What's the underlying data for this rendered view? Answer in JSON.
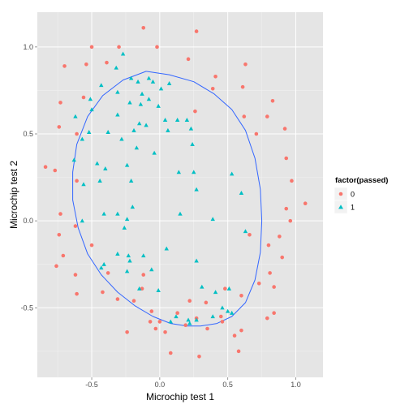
{
  "chart_data": {
    "type": "scatter",
    "xlabel": "Microchip test 1",
    "ylabel": "Microchip test 2",
    "xlim": [
      -0.9,
      1.2
    ],
    "ylim": [
      -0.9,
      1.2
    ],
    "x_ticks": [
      -0.5,
      0.0,
      0.5,
      1.0
    ],
    "x_tick_labels": [
      "-0.5",
      "0.0",
      "0.5",
      "1.0"
    ],
    "y_ticks": [
      -0.5,
      0.0,
      0.5,
      1.0
    ],
    "y_tick_labels": [
      "-0.5",
      "0.0",
      "0.5",
      "1.0"
    ],
    "grid": true,
    "legend": {
      "title": "factor(passed)",
      "placement": "right",
      "entries": [
        {
          "label": "0",
          "shape": "circle",
          "color": "#F8766D"
        },
        {
          "label": "1",
          "shape": "triangle",
          "color": "#00BFC4"
        }
      ]
    },
    "series": [
      {
        "name": "0",
        "shape": "circle",
        "color": "#F8766D",
        "points": [
          [
            -0.12,
            1.11
          ],
          [
            -0.5,
            1.0
          ],
          [
            -0.02,
            1.0
          ],
          [
            0.27,
            1.09
          ],
          [
            -0.3,
            1.0
          ],
          [
            -0.54,
            0.9
          ],
          [
            -0.39,
            0.91
          ],
          [
            -0.7,
            0.89
          ],
          [
            0.21,
            0.93
          ],
          [
            0.41,
            0.83
          ],
          [
            0.63,
            0.9
          ],
          [
            -0.56,
            0.71
          ],
          [
            0.39,
            0.76
          ],
          [
            -0.73,
            0.68
          ],
          [
            0.61,
            0.77
          ],
          [
            0.83,
            0.69
          ],
          [
            0.79,
            0.6
          ],
          [
            -0.74,
            0.54
          ],
          [
            0.62,
            0.6
          ],
          [
            0.71,
            0.5
          ],
          [
            0.92,
            0.53
          ],
          [
            -0.61,
            0.5
          ],
          [
            0.26,
            0.63
          ],
          [
            -0.84,
            0.31
          ],
          [
            -0.77,
            0.29
          ],
          [
            0.93,
            0.36
          ],
          [
            -0.61,
            0.23
          ],
          [
            0.97,
            0.23
          ],
          [
            1.07,
            0.1
          ],
          [
            -0.73,
            0.04
          ],
          [
            0.93,
            0.07
          ],
          [
            0.96,
            0.0
          ],
          [
            -0.62,
            -0.03
          ],
          [
            -0.74,
            -0.08
          ],
          [
            0.66,
            -0.08
          ],
          [
            0.88,
            -0.09
          ],
          [
            -0.5,
            -0.14
          ],
          [
            0.8,
            -0.14
          ],
          [
            -0.71,
            -0.2
          ],
          [
            0.9,
            -0.21
          ],
          [
            -0.76,
            -0.26
          ],
          [
            -0.38,
            -0.3
          ],
          [
            0.81,
            -0.3
          ],
          [
            -0.62,
            -0.31
          ],
          [
            -0.12,
            -0.31
          ],
          [
            0.73,
            -0.36
          ],
          [
            -0.42,
            -0.41
          ],
          [
            0.84,
            -0.38
          ],
          [
            -0.61,
            -0.42
          ],
          [
            -0.13,
            -0.39
          ],
          [
            0.48,
            -0.39
          ],
          [
            0.6,
            -0.43
          ],
          [
            -0.31,
            -0.45
          ],
          [
            -0.19,
            -0.46
          ],
          [
            0.22,
            -0.46
          ],
          [
            0.34,
            -0.47
          ],
          [
            -0.06,
            -0.52
          ],
          [
            0.13,
            -0.53
          ],
          [
            0.45,
            -0.55
          ],
          [
            0.27,
            -0.56
          ],
          [
            0.84,
            -0.53
          ],
          [
            0.79,
            -0.56
          ],
          [
            -0.07,
            -0.58
          ],
          [
            0.0,
            -0.58
          ],
          [
            0.46,
            -0.58
          ],
          [
            -0.03,
            -0.62
          ],
          [
            0.04,
            -0.64
          ],
          [
            0.19,
            -0.6
          ],
          [
            0.35,
            -0.62
          ],
          [
            0.6,
            -0.63
          ],
          [
            -0.24,
            -0.64
          ],
          [
            0.55,
            -0.66
          ],
          [
            0.08,
            -0.76
          ],
          [
            0.29,
            -0.78
          ],
          [
            0.58,
            -0.75
          ]
        ]
      },
      {
        "name": "1",
        "shape": "triangle",
        "color": "#00BFC4",
        "points": [
          [
            -0.27,
            0.96
          ],
          [
            -0.32,
            0.88
          ],
          [
            -0.43,
            0.78
          ],
          [
            -0.31,
            0.74
          ],
          [
            -0.08,
            0.82
          ],
          [
            -0.21,
            0.82
          ],
          [
            -0.05,
            0.8
          ],
          [
            -0.16,
            0.8
          ],
          [
            0.01,
            0.76
          ],
          [
            -0.13,
            0.73
          ],
          [
            0.07,
            0.79
          ],
          [
            -0.08,
            0.7
          ],
          [
            -0.51,
            0.7
          ],
          [
            -0.22,
            0.68
          ],
          [
            -0.14,
            0.67
          ],
          [
            -0.01,
            0.66
          ],
          [
            -0.5,
            0.64
          ],
          [
            -0.31,
            0.61
          ],
          [
            0.04,
            0.58
          ],
          [
            0.2,
            0.58
          ],
          [
            -0.62,
            0.6
          ],
          [
            0.13,
            0.58
          ],
          [
            -0.15,
            0.56
          ],
          [
            -0.1,
            0.55
          ],
          [
            0.06,
            0.52
          ],
          [
            0.23,
            0.53
          ],
          [
            -0.38,
            0.51
          ],
          [
            -0.19,
            0.52
          ],
          [
            -0.57,
            0.47
          ],
          [
            -0.52,
            0.51
          ],
          [
            -0.28,
            0.47
          ],
          [
            -0.04,
            0.39
          ],
          [
            0.24,
            0.44
          ],
          [
            -0.17,
            0.42
          ],
          [
            0.25,
            0.28
          ],
          [
            0.14,
            0.28
          ],
          [
            -0.63,
            0.35
          ],
          [
            -0.46,
            0.33
          ],
          [
            -0.24,
            0.32
          ],
          [
            -0.4,
            0.3
          ],
          [
            0.53,
            0.27
          ],
          [
            -0.56,
            0.21
          ],
          [
            -0.44,
            0.23
          ],
          [
            -0.21,
            0.23
          ],
          [
            0.6,
            0.16
          ],
          [
            0.27,
            0.18
          ],
          [
            -0.2,
            0.08
          ],
          [
            0.15,
            0.04
          ],
          [
            -0.41,
            0.04
          ],
          [
            -0.31,
            0.04
          ],
          [
            -0.24,
            0.01
          ],
          [
            -0.57,
            0.0
          ],
          [
            0.39,
            0.01
          ],
          [
            -0.26,
            -0.04
          ],
          [
            0.63,
            -0.06
          ],
          [
            0.05,
            -0.16
          ],
          [
            -0.31,
            -0.19
          ],
          [
            -0.23,
            -0.2
          ],
          [
            -0.12,
            -0.2
          ],
          [
            -0.22,
            -0.23
          ],
          [
            0.27,
            -0.23
          ],
          [
            -0.41,
            -0.25
          ],
          [
            -0.43,
            -0.27
          ],
          [
            -0.06,
            -0.28
          ],
          [
            -0.24,
            -0.29
          ],
          [
            0.31,
            -0.38
          ],
          [
            -0.15,
            -0.39
          ],
          [
            -0.01,
            -0.4
          ],
          [
            0.51,
            -0.39
          ],
          [
            0.41,
            -0.41
          ],
          [
            0.46,
            -0.5
          ],
          [
            0.5,
            -0.52
          ],
          [
            0.53,
            -0.53
          ],
          [
            0.39,
            -0.55
          ],
          [
            0.12,
            -0.55
          ],
          [
            0.21,
            -0.57
          ],
          [
            0.27,
            -0.57
          ],
          [
            0.08,
            -0.58
          ],
          [
            0.22,
            -0.59
          ]
        ]
      }
    ],
    "decision_boundary": {
      "color": "#3366FF",
      "points": [
        [
          -0.1,
          0.86
        ],
        [
          0.07,
          0.84
        ],
        [
          0.25,
          0.8
        ],
        [
          0.4,
          0.73
        ],
        [
          0.53,
          0.64
        ],
        [
          0.63,
          0.52
        ],
        [
          0.7,
          0.36
        ],
        [
          0.74,
          0.18
        ],
        [
          0.75,
          0.0
        ],
        [
          0.74,
          -0.18
        ],
        [
          0.7,
          -0.34
        ],
        [
          0.63,
          -0.47
        ],
        [
          0.53,
          -0.55
        ],
        [
          0.42,
          -0.59
        ],
        [
          0.3,
          -0.605
        ],
        [
          0.2,
          -0.605
        ],
        [
          0.08,
          -0.59
        ],
        [
          -0.05,
          -0.55
        ],
        [
          -0.18,
          -0.49
        ],
        [
          -0.31,
          -0.41
        ],
        [
          -0.43,
          -0.31
        ],
        [
          -0.53,
          -0.19
        ],
        [
          -0.6,
          -0.04
        ],
        [
          -0.64,
          0.12
        ],
        [
          -0.64,
          0.28
        ],
        [
          -0.61,
          0.44
        ],
        [
          -0.53,
          0.6
        ],
        [
          -0.42,
          0.72
        ],
        [
          -0.27,
          0.81
        ],
        [
          -0.1,
          0.86
        ]
      ]
    }
  }
}
